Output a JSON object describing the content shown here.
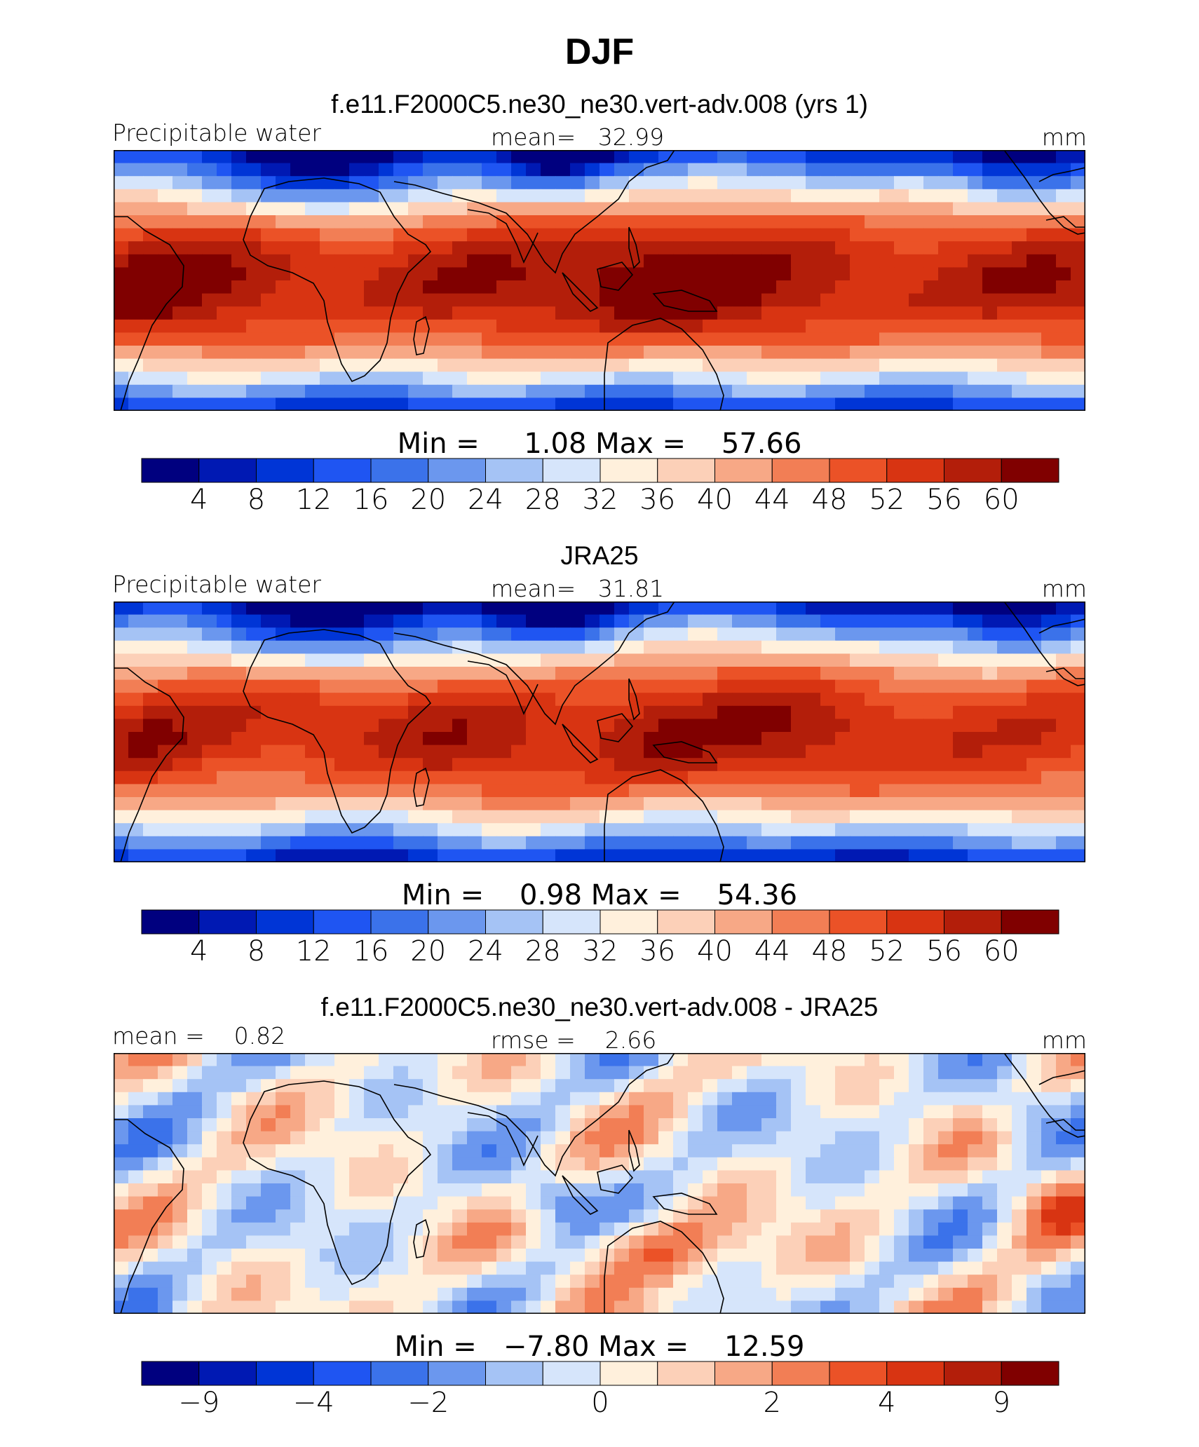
{
  "figure": {
    "title": "DJF"
  },
  "colormap": [
    "#00007f",
    "#0019b3",
    "#0035d6",
    "#1f55f2",
    "#3b72ea",
    "#6b97ee",
    "#a5c3f5",
    "#d6e5fb",
    "#fff0dc",
    "#fcd0b8",
    "#f7a886",
    "#f27e55",
    "#eb5227",
    "#d83412",
    "#b31e0a",
    "#800000"
  ],
  "coast_color": "#000000",
  "panels": [
    {
      "title": "f.e11.F2000C5.ne30_ne30.vert-adv.008 (yrs 1)",
      "label_left": "Precipitable water",
      "label_center": "mean=   32.99",
      "label_right": "mm",
      "minmax": "Min =     1.08 Max =    57.66",
      "colorbar_ticks": [
        "4",
        "8",
        "12",
        "16",
        "20",
        "24",
        "28",
        "32",
        "36",
        "40",
        "44",
        "48",
        "52",
        "56",
        "60"
      ]
    },
    {
      "title": "JRA25",
      "label_left": "Precipitable water",
      "label_center": "mean=   31.81",
      "label_right": "mm",
      "minmax": "Min =    0.98 Max =    54.36",
      "colorbar_ticks": [
        "4",
        "8",
        "12",
        "16",
        "20",
        "24",
        "28",
        "32",
        "36",
        "40",
        "44",
        "48",
        "52",
        "56",
        "60"
      ]
    },
    {
      "title": "f.e11.F2000C5.ne30_ne30.vert-adv.008 - JRA25",
      "label_left": "mean =    0.82",
      "label_center": "rmse =    2.66",
      "label_right": "mm",
      "minmax": "Min =   −7.80 Max =    12.59",
      "colorbar_ticks": [
        "−9",
        "",
        "−4",
        "",
        "−2",
        "",
        "",
        "0",
        "",
        "",
        "2",
        "",
        "4",
        "",
        "9"
      ]
    }
  ],
  "chart_data": [
    {
      "type": "heatmap",
      "title": "f.e11.F2000C5.ne30_ne30.vert-adv.008 (yrs 1)",
      "variable": "Precipitable water",
      "units": "mm",
      "mean": 32.99,
      "min": 1.08,
      "max": 57.66,
      "contour_levels": [
        4,
        8,
        12,
        16,
        20,
        24,
        28,
        32,
        36,
        40,
        44,
        48,
        52,
        56,
        60
      ],
      "domain": {
        "lon": [
          -40,
          70
        ],
        "lat": [
          -30,
          30
        ]
      }
    },
    {
      "type": "heatmap",
      "title": "JRA25",
      "variable": "Precipitable water",
      "units": "mm",
      "mean": 31.81,
      "min": 0.98,
      "max": 54.36,
      "contour_levels": [
        4,
        8,
        12,
        16,
        20,
        24,
        28,
        32,
        36,
        40,
        44,
        48,
        52,
        56,
        60
      ]
    },
    {
      "type": "heatmap",
      "title": "f.e11.F2000C5.ne30_ne30.vert-adv.008 - JRA25",
      "units": "mm",
      "mean": 0.82,
      "rmse": 2.66,
      "min": -7.8,
      "max": 12.59,
      "contour_levels": [
        -9,
        -4,
        -2,
        0,
        2,
        4,
        9
      ]
    }
  ]
}
